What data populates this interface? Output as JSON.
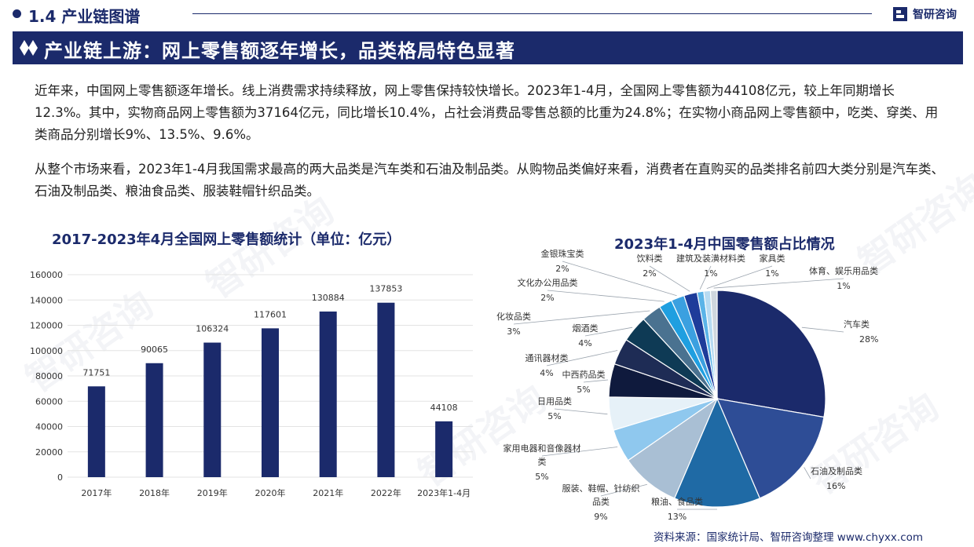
{
  "header": {
    "section_title": "1.4 产业链图谱",
    "brand_name": "智研咨询",
    "banner_title": "产业链上游：网上零售额逐年增长，品类格局特色显著"
  },
  "paragraphs": [
    "近年来，中国网上零售额逐年增长。线上消费需求持续释放，网上零售保持较快增长。2023年1-4月，全国网上零售额为44108亿元，较上年同期增长12.3%。其中，实物商品网上零售额为37164亿元，同比增长10.4%，占社会消费品零售总额的比重为24.8%；在实物小商品网上零售额中，吃类、穿类、用类商品分别增长9%、13.5%、9.6%。",
    "从整个市场来看，2023年1-4月我国需求最高的两大品类是汽车类和石油及制品类。从购物品类偏好来看，消费者在直购买的品类排名前四大类分别是汽车类、石油及制品类、粮油食品类、服装鞋帽针织品类。"
  ],
  "source": "资料来源：国家统计局、智研咨询整理    www.chyxx.com",
  "watermark": "智研咨询",
  "colors": {
    "navy": "#1b2a6b",
    "bar": "#1b2a6b"
  },
  "chart_data": [
    {
      "type": "bar",
      "title": "2017-2023年4月全国网上零售额统计（单位：亿元）",
      "categories": [
        "2017年",
        "2018年",
        "2019年",
        "2020年",
        "2021年",
        "2022年",
        "2023年1-4月"
      ],
      "values": [
        71751,
        90065,
        106324,
        117601,
        130884,
        137853,
        44108
      ],
      "ylim": [
        0,
        160000
      ],
      "yticks": [
        0,
        20000,
        40000,
        60000,
        80000,
        100000,
        120000,
        140000,
        160000
      ],
      "grid": true,
      "xlabel": "",
      "ylabel": ""
    },
    {
      "type": "pie",
      "title": "2023年1-4月中国零售额占比情况",
      "slices": [
        {
          "label": "汽车类",
          "pct_label": "28%",
          "value": 28,
          "color": "#1b2a6b"
        },
        {
          "label": "石油及制品类",
          "pct_label": "16%",
          "value": 16,
          "color": "#2e4d96"
        },
        {
          "label": "粮油、食品类",
          "pct_label": "13%",
          "value": 13,
          "color": "#1f6aa5"
        },
        {
          "label": "服装、鞋帽、针纺织品类",
          "pct_label": "9%",
          "value": 9,
          "color": "#a9bfd4"
        },
        {
          "label": "家用电器和音像器材类",
          "pct_label": "5%",
          "value": 5,
          "color": "#8fc8ee"
        },
        {
          "label": "日用品类",
          "pct_label": "5%",
          "value": 5,
          "color": "#e6f1f8"
        },
        {
          "label": "中西药品类",
          "pct_label": "5%",
          "value": 5,
          "color": "#0f1a3d"
        },
        {
          "label": "通讯器材类",
          "pct_label": "4%",
          "value": 4,
          "color": "#1e2c55"
        },
        {
          "label": "烟酒类",
          "pct_label": "4%",
          "value": 4,
          "color": "#0e3a55"
        },
        {
          "label": "化妆品类",
          "pct_label": "3%",
          "value": 3,
          "color": "#4a7290"
        },
        {
          "label": "文化办公用品类",
          "pct_label": "2%",
          "value": 2,
          "color": "#1f9fe0"
        },
        {
          "label": "金银珠宝类",
          "pct_label": "2%",
          "value": 2,
          "color": "#3ba0e0"
        },
        {
          "label": "饮料类",
          "pct_label": "2%",
          "value": 2,
          "color": "#1e3c9a"
        },
        {
          "label": "建筑及装潢材料类",
          "pct_label": "1%",
          "value": 1,
          "color": "#5bb4e8"
        },
        {
          "label": "家具类",
          "pct_label": "1%",
          "value": 1,
          "color": "#b7dbf2"
        },
        {
          "label": "体育、娱乐用品类",
          "pct_label": "1%",
          "value": 1,
          "color": "#cfd6de"
        }
      ]
    }
  ]
}
